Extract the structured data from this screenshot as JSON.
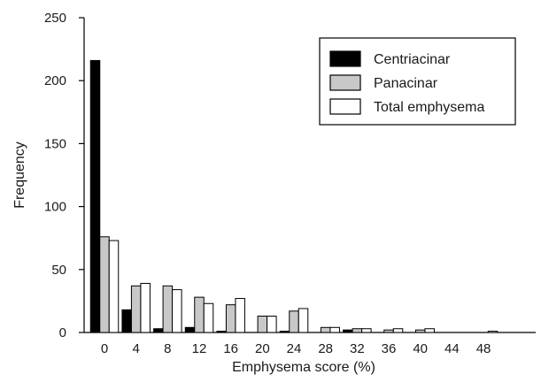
{
  "chart_data": {
    "type": "bar",
    "title": "",
    "xlabel": "Emphysema score (%)",
    "ylabel": "Frequency",
    "ylim": [
      0,
      250
    ],
    "yticks": [
      0,
      50,
      100,
      150,
      200,
      250
    ],
    "grid": false,
    "legend_position": "top-right",
    "categories": [
      "0",
      "4",
      "8",
      "12",
      "16",
      "20",
      "24",
      "28",
      "32",
      "36",
      "40",
      "44",
      "48"
    ],
    "series": [
      {
        "name": "Centriacinar",
        "color": "#000000",
        "values": [
          216,
          18,
          3,
          4,
          1,
          0,
          1,
          0,
          2,
          0,
          0,
          0,
          0
        ]
      },
      {
        "name": "Panacinar",
        "color": "#c8c8c8",
        "values": [
          76,
          37,
          37,
          28,
          22,
          13,
          17,
          4,
          3,
          2,
          2,
          0,
          0
        ]
      },
      {
        "name": "Total emphysema",
        "color": "#ffffff",
        "values": [
          73,
          39,
          34,
          23,
          27,
          13,
          19,
          4,
          3,
          3,
          3,
          0,
          1
        ]
      }
    ]
  }
}
